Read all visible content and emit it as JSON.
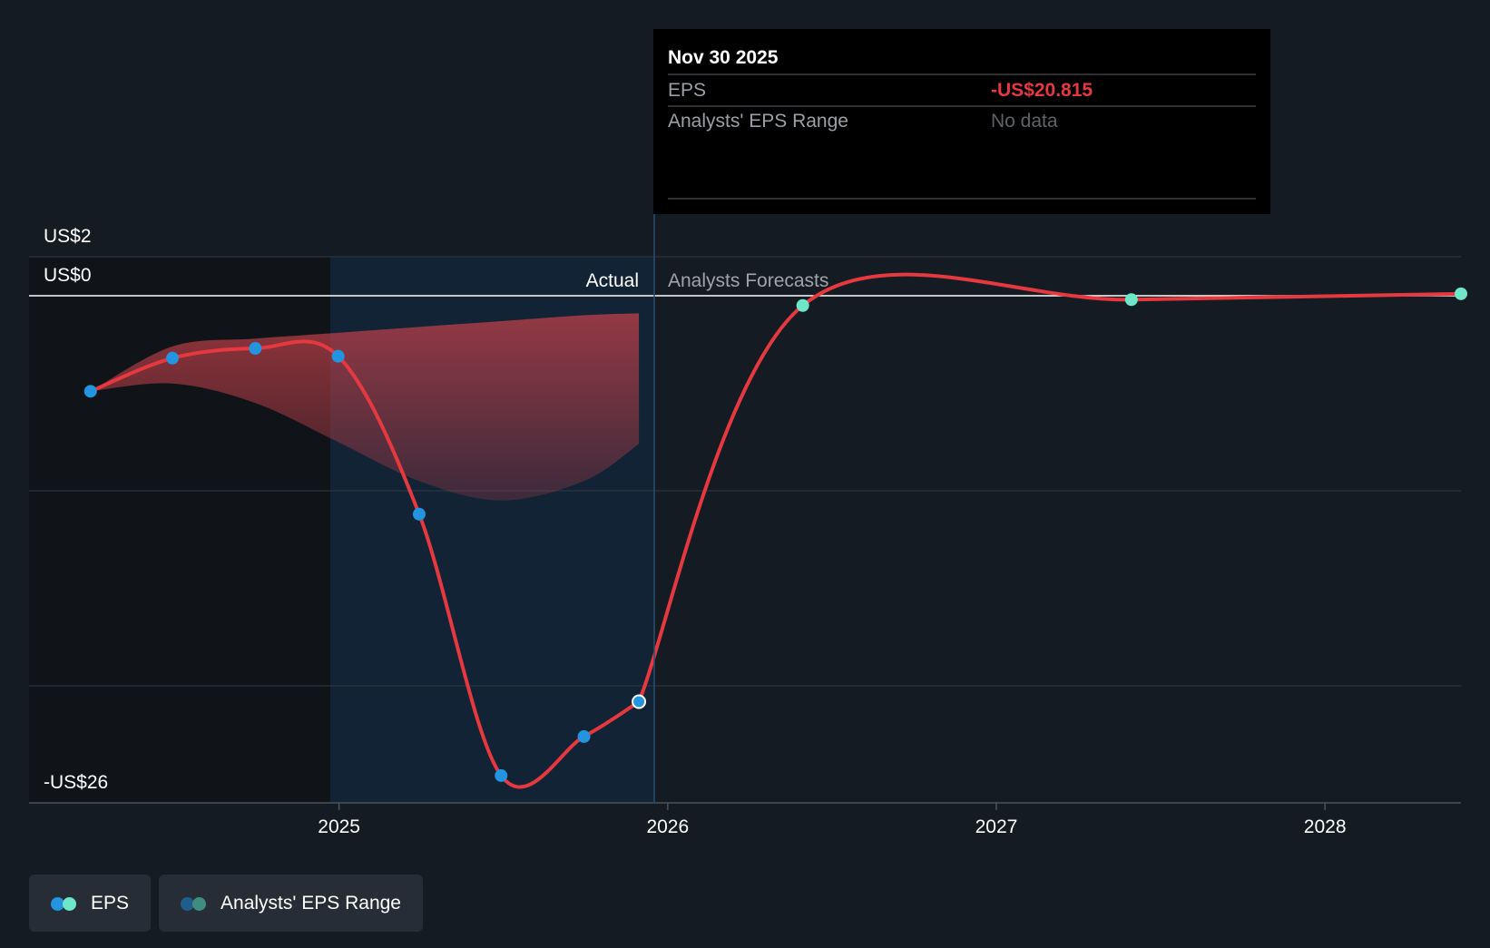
{
  "chart_data": {
    "type": "line",
    "x_axis": {
      "ticks": [
        "2025",
        "2026",
        "2027",
        "2028"
      ],
      "range": [
        "2024-03-01",
        "2028-05-31"
      ]
    },
    "y_axis": {
      "labels": [
        "US$2",
        "US$0",
        "-US$26"
      ],
      "range": [
        -26,
        2
      ],
      "gridlines": [
        2,
        0,
        -10,
        -20
      ]
    },
    "regions": {
      "actual_label": "Actual",
      "forecast_label": "Analysts Forecasts",
      "divider_date": "2025-11-30",
      "highlight_start": "2024-11-30"
    },
    "series": [
      {
        "name": "EPS",
        "color": "#e5383f",
        "points": [
          {
            "x": "2024-03-31",
            "y": -4.9
          },
          {
            "x": "2024-06-30",
            "y": -3.2
          },
          {
            "x": "2024-09-30",
            "y": -2.7
          },
          {
            "x": "2024-12-31",
            "y": -3.1
          },
          {
            "x": "2025-03-31",
            "y": -11.2
          },
          {
            "x": "2025-06-30",
            "y": -24.6
          },
          {
            "x": "2025-09-30",
            "y": -22.6
          },
          {
            "x": "2025-11-30",
            "y": -20.815
          }
        ]
      },
      {
        "name": "EPS",
        "color": "#e5383f",
        "points": [
          {
            "x": "2025-11-30",
            "y": -20.815
          },
          {
            "x": "2026-05-31",
            "y": -0.5
          },
          {
            "x": "2027-05-31",
            "y": -0.2
          },
          {
            "x": "2028-05-31",
            "y": 0.1
          }
        ]
      }
    ],
    "analysts_eps_range_past": {
      "color": "#c0404a",
      "x": [
        "2024-03-31",
        "2024-06-30",
        "2024-09-30",
        "2024-12-31",
        "2025-03-31",
        "2025-06-30",
        "2025-09-30",
        "2025-11-30"
      ],
      "upper": [
        -4.9,
        -2.6,
        -2.2,
        -1.9,
        -1.6,
        -1.3,
        -1.0,
        -0.9
      ],
      "lower": [
        -4.9,
        -4.5,
        -5.5,
        -7.5,
        -9.5,
        -10.5,
        -9.5,
        -7.6
      ]
    }
  },
  "tooltip": {
    "date": "Nov 30 2025",
    "rows": [
      {
        "label": "EPS",
        "value": "-US$20.815"
      },
      {
        "label": "Analysts' EPS Range",
        "value": "No data"
      }
    ]
  },
  "legend": [
    {
      "label": "EPS",
      "colors": [
        "#2394df",
        "#6ee6c8"
      ]
    },
    {
      "label": "Analysts' EPS Range",
      "colors": [
        "#1f5e8c",
        "#3f8d80"
      ]
    }
  ],
  "colors": {
    "background": "#151b23",
    "eps_line": "#e5383f",
    "actual_point": "#2394df",
    "forecast_point": "#6ee6c8"
  }
}
